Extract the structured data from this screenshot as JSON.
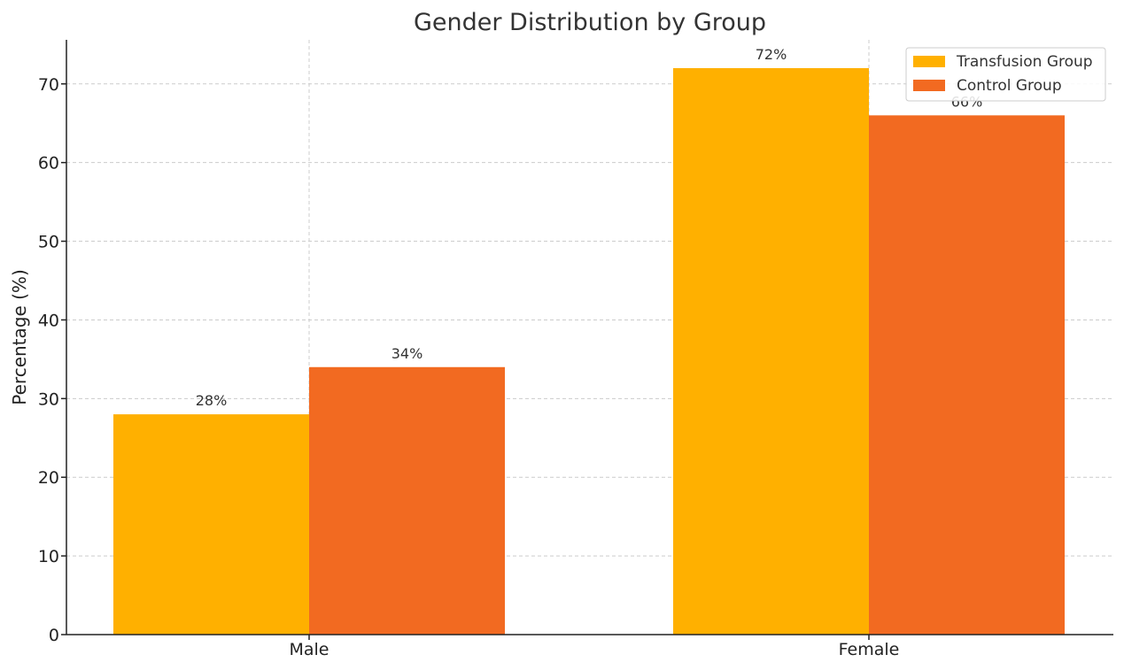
{
  "chart_data": {
    "type": "bar",
    "title": "Gender Distribution by Group",
    "xlabel": "",
    "ylabel": "Percentage (%)",
    "categories": [
      "Male",
      "Female"
    ],
    "series": [
      {
        "name": "Transfusion Group",
        "values": [
          28,
          72
        ],
        "labels": [
          "28%",
          "72%"
        ],
        "color": "#FFB000"
      },
      {
        "name": "Control Group",
        "values": [
          34,
          66
        ],
        "labels": [
          "34%",
          "66%"
        ],
        "color": "#F26A21"
      }
    ],
    "ylim": [
      0,
      75.6
    ],
    "yticks": [
      0,
      10,
      20,
      30,
      40,
      50,
      60,
      70
    ],
    "grid": true,
    "legend_position": "top-right"
  }
}
